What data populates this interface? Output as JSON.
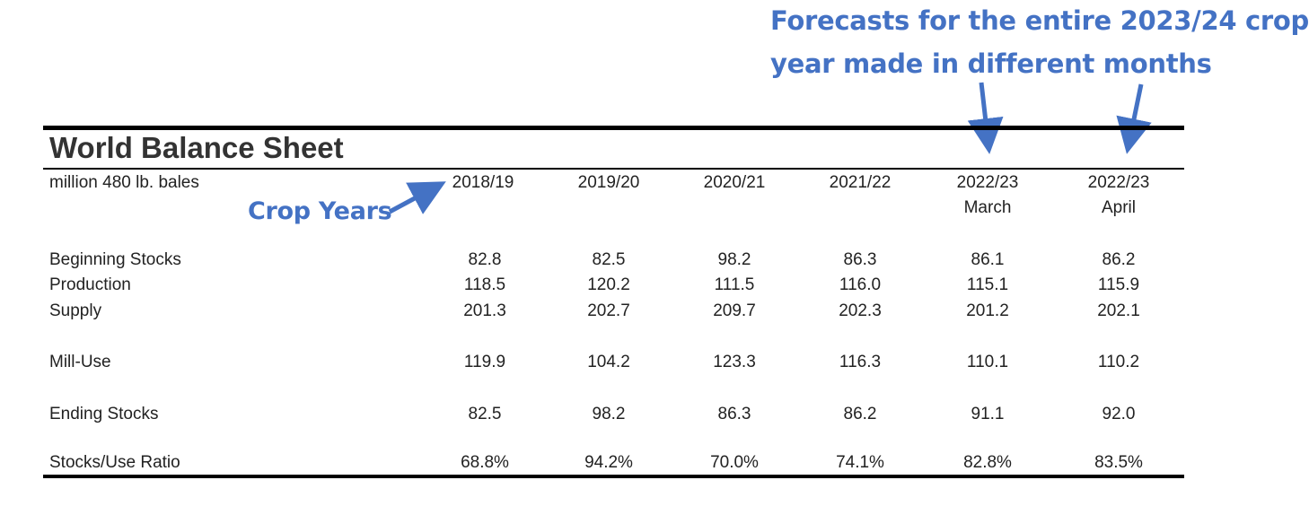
{
  "annotations": {
    "forecast_line1": "Forecasts for the entire 2023/24 crop",
    "forecast_line2": "year made in different months",
    "crop_years": "Crop Years",
    "color": "#4472c4"
  },
  "sheet": {
    "title": "World Balance Sheet",
    "units": "million 480 lb. bales",
    "columns": [
      {
        "year": "2018/19",
        "sub": ""
      },
      {
        "year": "2019/20",
        "sub": ""
      },
      {
        "year": "2020/21",
        "sub": ""
      },
      {
        "year": "2021/22",
        "sub": ""
      },
      {
        "year": "2022/23",
        "sub": "March"
      },
      {
        "year": "2022/23",
        "sub": "April"
      }
    ],
    "rows": [
      {
        "label": "Beginning Stocks",
        "values": [
          "82.8",
          "82.5",
          "98.2",
          "86.3",
          "86.1",
          "86.2"
        ]
      },
      {
        "label": "Production",
        "values": [
          "118.5",
          "120.2",
          "111.5",
          "116.0",
          "115.1",
          "115.9"
        ]
      },
      {
        "label": "Supply",
        "values": [
          "201.3",
          "202.7",
          "209.7",
          "202.3",
          "201.2",
          "202.1"
        ]
      },
      {
        "label": "Mill-Use",
        "values": [
          "119.9",
          "104.2",
          "123.3",
          "116.3",
          "110.1",
          "110.2"
        ]
      },
      {
        "label": "Ending Stocks",
        "values": [
          "82.5",
          "98.2",
          "86.3",
          "86.2",
          "91.1",
          "92.0"
        ]
      },
      {
        "label": "Stocks/Use Ratio",
        "values": [
          "68.8%",
          "94.2%",
          "70.0%",
          "74.1%",
          "82.8%",
          "83.5%"
        ]
      }
    ]
  }
}
